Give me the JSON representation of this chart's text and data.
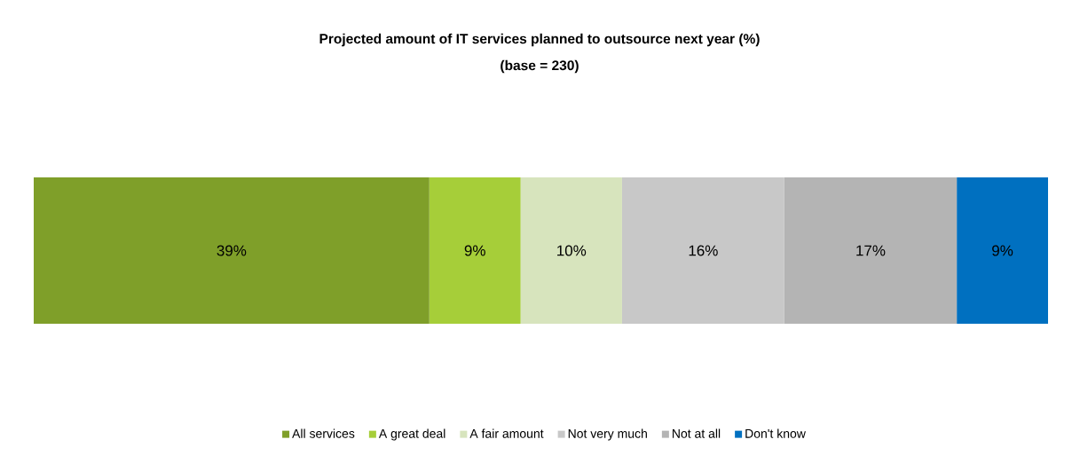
{
  "chart_data": {
    "type": "bar",
    "orientation": "horizontal",
    "stacked": true,
    "title": "Projected amount of IT services planned to outsource next year (%)",
    "subtitle": "(base = 230)",
    "categories": [
      null
    ],
    "series": [
      {
        "name": "All services",
        "color": "#7f9f29",
        "values": [
          39
        ],
        "value_labels": [
          "39%"
        ]
      },
      {
        "name": "A great deal",
        "color": "#a6ce39",
        "values": [
          9
        ],
        "value_labels": [
          "9%"
        ]
      },
      {
        "name": "A fair amount",
        "color": "#d7e4bd",
        "values": [
          10
        ],
        "value_labels": [
          "10%"
        ]
      },
      {
        "name": "Not very much",
        "color": "#c8c8c8",
        "values": [
          16
        ],
        "value_labels": [
          "16%"
        ]
      },
      {
        "name": "Not at all",
        "color": "#b4b4b4",
        "values": [
          17
        ],
        "value_labels": [
          "17%"
        ]
      },
      {
        "name": "Don't know",
        "color": "#0070c0",
        "values": [
          9
        ],
        "value_labels": [
          "9%"
        ]
      }
    ],
    "xlim": [
      0,
      100
    ],
    "tick_labels": false,
    "legend": "bottom"
  }
}
